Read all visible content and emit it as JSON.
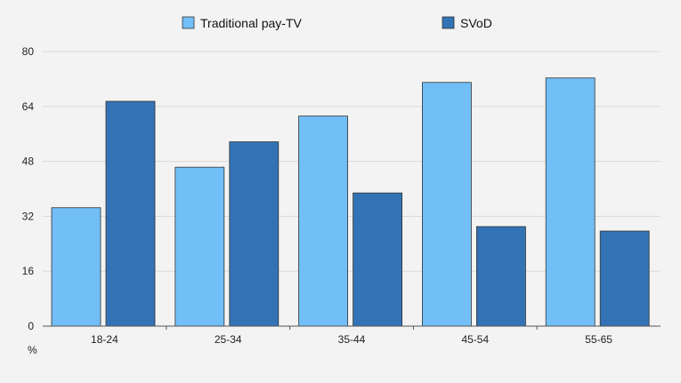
{
  "chart_data": {
    "type": "bar",
    "categories": [
      "18-24",
      "25-34",
      "35-44",
      "45-54",
      "55-65"
    ],
    "series": [
      {
        "name": "Traditional pay-TV",
        "values": [
          34.5,
          46.3,
          61.2,
          71.0,
          72.3
        ],
        "color": "#72bef6"
      },
      {
        "name": "SVoD",
        "values": [
          65.5,
          53.7,
          38.8,
          29.0,
          27.7
        ],
        "color": "#3373b5"
      }
    ],
    "ylim": [
      0,
      80
    ],
    "yticks": [
      "0",
      "16",
      "32",
      "48",
      "64",
      "80"
    ],
    "ylabel": "%",
    "grid": true,
    "legend_position": "top"
  }
}
